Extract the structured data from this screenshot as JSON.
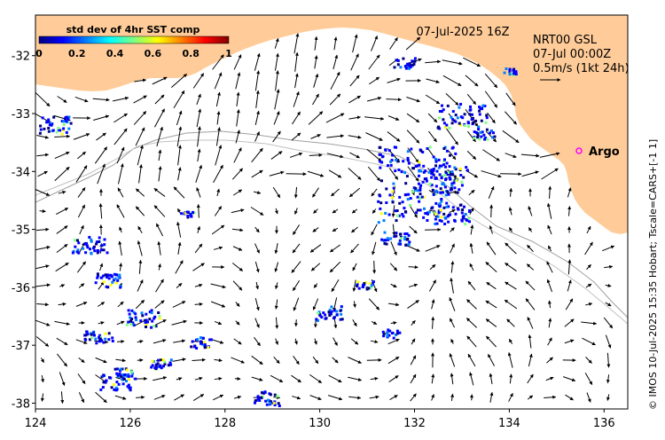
{
  "map": {
    "timestamp": "07-Jul-2025 16Z",
    "colorbar": {
      "title": "std dev of 4hr SST comp",
      "ticks": [
        "0",
        "0.2",
        "0.4",
        "0.6",
        "0.8",
        "1"
      ],
      "colors": [
        "#00007f",
        "#0000ff",
        "#0080ff",
        "#00ffff",
        "#80ff80",
        "#ffff00",
        "#ff8000",
        "#ff0000",
        "#7f0000"
      ]
    },
    "current_legend": {
      "product": "NRT00 GSL",
      "date": "07-Jul 00:00Z",
      "scale": "0.5m/s (1kt 24h)"
    },
    "argo_label": "Argo",
    "credit": "© IMOS 10-Jul-2025 15:35 Hobart; Tscale=CARS+[-1 1]",
    "land_color": "#ffcc99",
    "argo_color": "#ff00ff",
    "y_ticks": [
      "-32",
      "-33",
      "-34",
      "-35",
      "-36",
      "-37",
      "-38"
    ],
    "x_ticks": [
      "124",
      "126",
      "128",
      "130",
      "132",
      "134",
      "136"
    ],
    "lon_range": [
      124,
      136.5
    ],
    "lat_range": [
      -38.1,
      -31.3
    ]
  }
}
